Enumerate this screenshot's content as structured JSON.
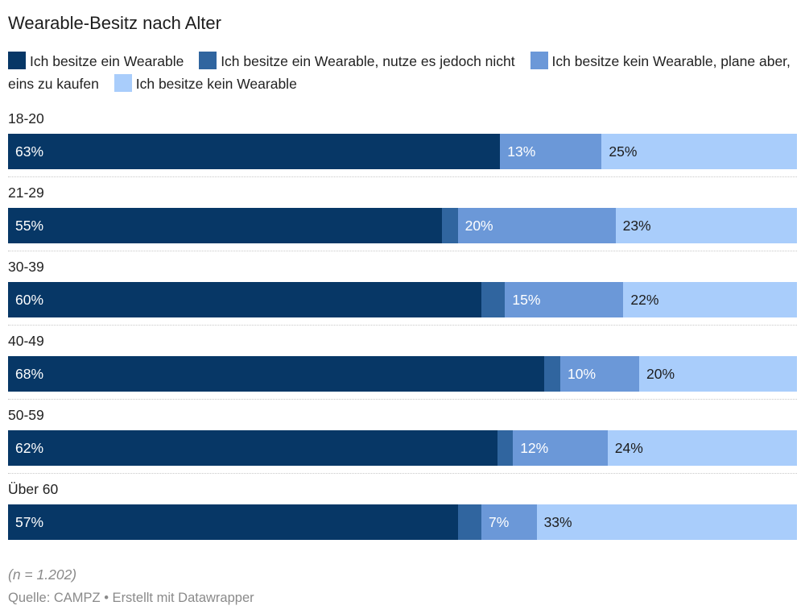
{
  "chart_data": {
    "type": "bar",
    "orientation": "horizontal-stacked",
    "title": "Wearable-Besitz nach Alter",
    "note": "(n = 1.202)",
    "source": "Quelle: CAMPZ • Erstellt mit Datawrapper",
    "unit": "%",
    "categories": [
      "18-20",
      "21-29",
      "30-39",
      "40-49",
      "50-59",
      "Über 60"
    ],
    "series": [
      {
        "name": "Ich besitze ein Wearable",
        "color": "#073766",
        "label_color": "#ffffff",
        "values": [
          63,
          55,
          60,
          68,
          62,
          57
        ],
        "labels": [
          "63%",
          "55%",
          "60%",
          "68%",
          "62%",
          "57%"
        ]
      },
      {
        "name": "Ich besitze ein Wearable, nutze es jedoch nicht",
        "color": "#30659f",
        "label_color": "#ffffff",
        "values": [
          0,
          2,
          3,
          2,
          2,
          3
        ],
        "labels": [
          "",
          "",
          "",
          "",
          "",
          ""
        ]
      },
      {
        "name": "Ich besitze kein Wearable, plane aber, eins zu kaufen",
        "color": "#6b98d8",
        "label_color": "#ffffff",
        "values": [
          13,
          20,
          15,
          10,
          12,
          7
        ],
        "labels": [
          "13%",
          "20%",
          "15%",
          "10%",
          "12%",
          "7%"
        ]
      },
      {
        "name": "Ich besitze kein Wearable",
        "color": "#a9cdfb",
        "label_color": "#1d1d1d",
        "values": [
          25,
          23,
          22,
          20,
          24,
          33
        ],
        "labels": [
          "25%",
          "23%",
          "22%",
          "20%",
          "24%",
          "33%"
        ]
      }
    ]
  }
}
